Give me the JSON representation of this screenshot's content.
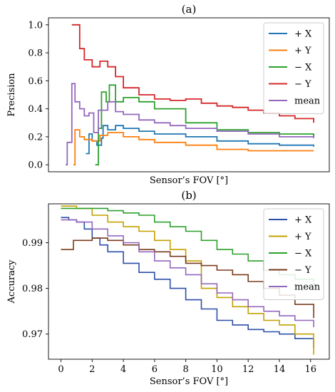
{
  "chart_data": [
    {
      "type": "line",
      "title": "(a)",
      "xlabel": "Sensor’s FOV [°]",
      "ylabel": "Precision",
      "xlim": [
        -0.8,
        17.2
      ],
      "ylim": [
        -0.05,
        1.05
      ],
      "xticks": [],
      "yticks": [
        "0.0",
        "0.2",
        "0.4",
        "0.6",
        "0.8",
        "1.0"
      ],
      "legend_position": "top-right",
      "grid": false,
      "series": [
        {
          "name": "+ X",
          "color": "#1f77b4",
          "step": true,
          "points": [
            [
              1.6,
              0.08
            ],
            [
              1.8,
              0.22
            ],
            [
              2.0,
              0.17
            ],
            [
              2.3,
              0.14
            ],
            [
              2.6,
              0.19
            ],
            [
              2.7,
              0.28
            ],
            [
              3.0,
              0.25
            ],
            [
              3.5,
              0.28
            ],
            [
              4.0,
              0.26
            ],
            [
              5.0,
              0.24
            ],
            [
              6.0,
              0.22
            ],
            [
              8.0,
              0.2
            ],
            [
              10.0,
              0.17
            ],
            [
              12.0,
              0.15
            ],
            [
              14.0,
              0.14
            ],
            [
              16.2,
              0.13
            ]
          ]
        },
        {
          "name": "+ Y",
          "color": "#ff7f0e",
          "step": true,
          "points": [
            [
              0.8,
              0.0
            ],
            [
              0.9,
              0.25
            ],
            [
              1.2,
              0.2
            ],
            [
              1.5,
              0.18
            ],
            [
              2.0,
              0.17
            ],
            [
              2.5,
              0.21
            ],
            [
              3.0,
              0.23
            ],
            [
              4.0,
              0.2
            ],
            [
              5.0,
              0.18
            ],
            [
              6.0,
              0.16
            ],
            [
              8.0,
              0.14
            ],
            [
              10.0,
              0.11
            ],
            [
              12.0,
              0.1
            ],
            [
              14.0,
              0.1
            ],
            [
              16.2,
              0.1
            ]
          ]
        },
        {
          "name": "− X",
          "color": "#2ca02c",
          "step": true,
          "points": [
            [
              2.2,
              0.0
            ],
            [
              2.4,
              0.26
            ],
            [
              2.6,
              0.52
            ],
            [
              2.9,
              0.45
            ],
            [
              3.1,
              0.57
            ],
            [
              3.5,
              0.45
            ],
            [
              4.0,
              0.48
            ],
            [
              5.0,
              0.45
            ],
            [
              6.0,
              0.4
            ],
            [
              8.0,
              0.3
            ],
            [
              10.0,
              0.25
            ],
            [
              12.0,
              0.23
            ],
            [
              14.0,
              0.22
            ],
            [
              16.2,
              0.2
            ]
          ]
        },
        {
          "name": "− Y",
          "color": "#d62728",
          "step": true,
          "points": [
            [
              0.7,
              1.0
            ],
            [
              1.2,
              0.83
            ],
            [
              1.5,
              0.75
            ],
            [
              2.0,
              0.7
            ],
            [
              2.5,
              0.74
            ],
            [
              3.0,
              0.7
            ],
            [
              3.5,
              0.63
            ],
            [
              4.0,
              0.55
            ],
            [
              5.0,
              0.5
            ],
            [
              6.0,
              0.47
            ],
            [
              7.0,
              0.46
            ],
            [
              8.0,
              0.47
            ],
            [
              9.0,
              0.44
            ],
            [
              10.0,
              0.42
            ],
            [
              11.0,
              0.41
            ],
            [
              12.0,
              0.39
            ],
            [
              13.0,
              0.37
            ],
            [
              14.0,
              0.35
            ],
            [
              15.0,
              0.33
            ],
            [
              16.2,
              0.3
            ]
          ]
        },
        {
          "name": "mean",
          "color": "#9467bd",
          "step": true,
          "points": [
            [
              0.3,
              0.0
            ],
            [
              0.4,
              0.16
            ],
            [
              0.7,
              0.58
            ],
            [
              0.9,
              0.45
            ],
            [
              1.2,
              0.4
            ],
            [
              1.5,
              0.35
            ],
            [
              1.8,
              0.37
            ],
            [
              2.1,
              0.23
            ],
            [
              2.4,
              0.39
            ],
            [
              3.0,
              0.45
            ],
            [
              3.5,
              0.38
            ],
            [
              4.0,
              0.36
            ],
            [
              5.0,
              0.32
            ],
            [
              6.0,
              0.3
            ],
            [
              7.0,
              0.28
            ],
            [
              8.0,
              0.26
            ],
            [
              10.0,
              0.24
            ],
            [
              12.0,
              0.22
            ],
            [
              14.0,
              0.2
            ],
            [
              16.2,
              0.19
            ]
          ]
        }
      ]
    },
    {
      "type": "line",
      "title": "(b)",
      "xlabel": "Sensor’s FOV [°]",
      "ylabel": "Accuracy",
      "xlim": [
        -0.8,
        17.2
      ],
      "ylim": [
        0.9645,
        0.9985
      ],
      "xticks": [
        "0",
        "2",
        "4",
        "6",
        "8",
        "10",
        "12",
        "14",
        "16"
      ],
      "yticks": [
        "0.97",
        "0.98",
        "0.99"
      ],
      "legend_position": "top-right",
      "grid": false,
      "series": [
        {
          "name": "+ X",
          "color": "#2b4fa8",
          "step": true,
          "points": [
            [
              0,
              0.9955
            ],
            [
              0.5,
              0.995
            ],
            [
              1.0,
              0.9945
            ],
            [
              1.5,
              0.993
            ],
            [
              2.0,
              0.991
            ],
            [
              2.5,
              0.9895
            ],
            [
              3.0,
              0.988
            ],
            [
              4.0,
              0.9855
            ],
            [
              5.0,
              0.9835
            ],
            [
              6.0,
              0.982
            ],
            [
              7.0,
              0.98
            ],
            [
              8.0,
              0.9775
            ],
            [
              9.0,
              0.9755
            ],
            [
              10.0,
              0.973
            ],
            [
              11.0,
              0.972
            ],
            [
              12.0,
              0.971
            ],
            [
              13.0,
              0.9705
            ],
            [
              14.0,
              0.97
            ],
            [
              15.0,
              0.969
            ],
            [
              16.2,
              0.967
            ]
          ]
        },
        {
          "name": "+ Y",
          "color": "#c4a000",
          "step": true,
          "points": [
            [
              0,
              0.998
            ],
            [
              1.0,
              0.9975
            ],
            [
              2.0,
              0.996
            ],
            [
              3.0,
              0.9945
            ],
            [
              4.0,
              0.9935
            ],
            [
              5.0,
              0.9925
            ],
            [
              6.0,
              0.9905
            ],
            [
              7.0,
              0.9885
            ],
            [
              8.0,
              0.986
            ],
            [
              9.0,
              0.98
            ],
            [
              10.0,
              0.978
            ],
            [
              11.0,
              0.976
            ],
            [
              12.0,
              0.9745
            ],
            [
              13.0,
              0.973
            ],
            [
              14.0,
              0.972
            ],
            [
              15.0,
              0.97
            ],
            [
              16.2,
              0.9655
            ]
          ]
        },
        {
          "name": "− X",
          "color": "#2ca02c",
          "step": true,
          "points": [
            [
              0,
              0.9975
            ],
            [
              2.0,
              0.9975
            ],
            [
              3.0,
              0.997
            ],
            [
              4.0,
              0.9965
            ],
            [
              5.0,
              0.996
            ],
            [
              6.0,
              0.9945
            ],
            [
              7.0,
              0.9935
            ],
            [
              8.0,
              0.9925
            ],
            [
              9.0,
              0.9905
            ],
            [
              10.0,
              0.9885
            ],
            [
              11.0,
              0.9875
            ],
            [
              12.0,
              0.986
            ],
            [
              13.0,
              0.984
            ],
            [
              14.0,
              0.983
            ],
            [
              15.0,
              0.982
            ],
            [
              16.2,
              0.98
            ]
          ]
        },
        {
          "name": "− Y",
          "color": "#7a3b1c",
          "step": true,
          "points": [
            [
              0,
              0.9885
            ],
            [
              0.8,
              0.9905
            ],
            [
              2.0,
              0.991
            ],
            [
              3.0,
              0.9905
            ],
            [
              4.0,
              0.9895
            ],
            [
              5.0,
              0.9885
            ],
            [
              6.0,
              0.988
            ],
            [
              7.0,
              0.987
            ],
            [
              8.0,
              0.9855
            ],
            [
              9.0,
              0.985
            ],
            [
              10.0,
              0.984
            ],
            [
              11.0,
              0.983
            ],
            [
              12.0,
              0.9815
            ],
            [
              13.0,
              0.98
            ],
            [
              14.0,
              0.9785
            ],
            [
              15.0,
              0.9765
            ],
            [
              16.2,
              0.9735
            ]
          ]
        },
        {
          "name": "mean",
          "color": "#9467bd",
          "step": true,
          "points": [
            [
              0,
              0.995
            ],
            [
              1.0,
              0.9945
            ],
            [
              2.0,
              0.993
            ],
            [
              3.0,
              0.9915
            ],
            [
              4.0,
              0.99
            ],
            [
              5.0,
              0.988
            ],
            [
              6.0,
              0.986
            ],
            [
              7.0,
              0.9845
            ],
            [
              8.0,
              0.983
            ],
            [
              9.0,
              0.981
            ],
            [
              10.0,
              0.979
            ],
            [
              11.0,
              0.9775
            ],
            [
              12.0,
              0.976
            ],
            [
              13.0,
              0.975
            ],
            [
              14.0,
              0.974
            ],
            [
              15.0,
              0.973
            ],
            [
              16.2,
              0.9715
            ]
          ]
        }
      ]
    }
  ]
}
